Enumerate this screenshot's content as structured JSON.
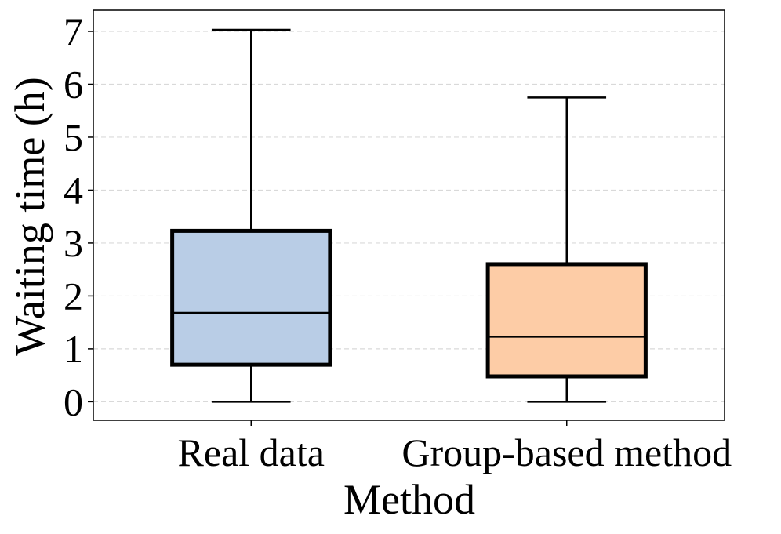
{
  "chart_data": {
    "type": "box",
    "xlabel": "Method",
    "ylabel": "Waiting time (h)",
    "ylim": [
      -0.35,
      7.4
    ],
    "yticks": [
      0,
      1,
      2,
      3,
      4,
      5,
      6,
      7
    ],
    "grid": "horizontal dashed",
    "categories": [
      "Real data",
      "Group-based method"
    ],
    "boxes": [
      {
        "category": "Real data",
        "min": 0.0,
        "q1": 0.7,
        "median": 1.68,
        "q3": 3.23,
        "max": 7.03,
        "color": "#b9cde6"
      },
      {
        "category": "Group-based method",
        "min": 0.0,
        "q1": 0.48,
        "median": 1.23,
        "q3": 2.6,
        "max": 5.75,
        "color": "#fdcca6"
      }
    ]
  }
}
